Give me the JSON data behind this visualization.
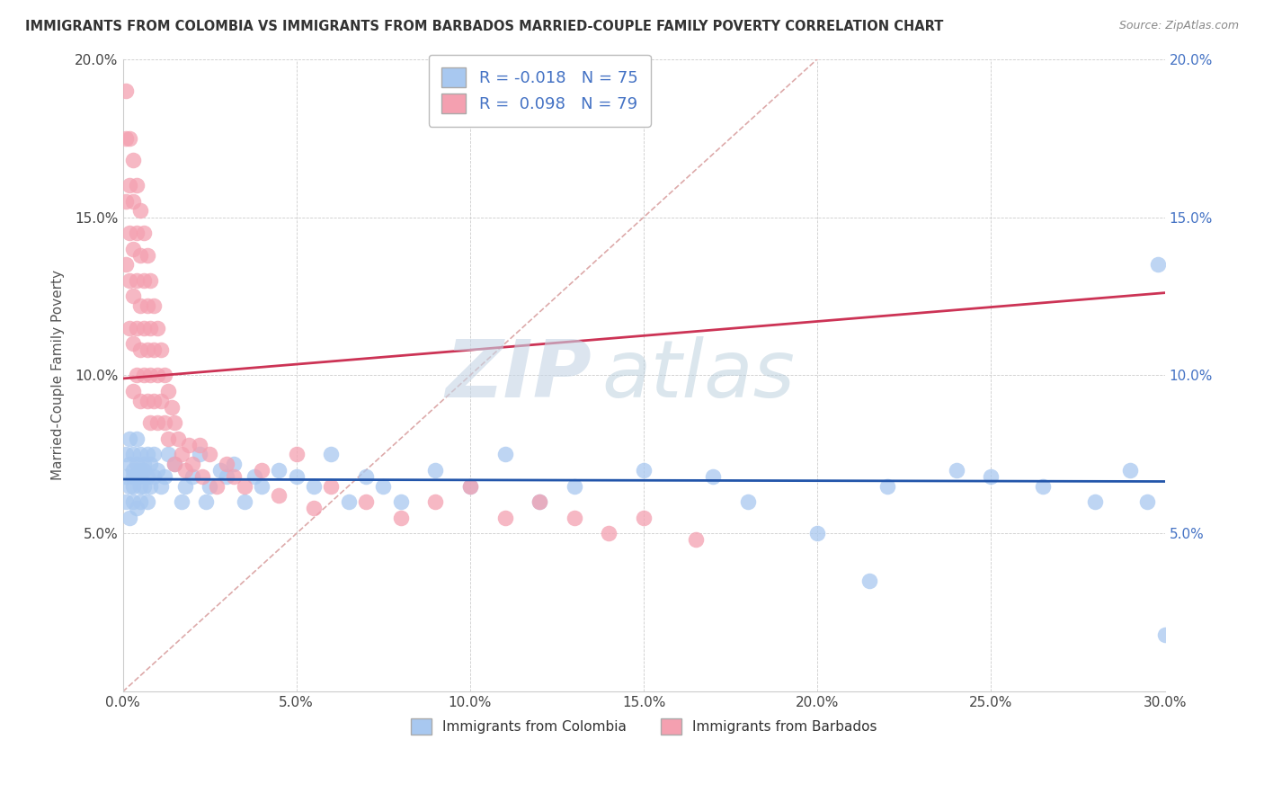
{
  "title": "IMMIGRANTS FROM COLOMBIA VS IMMIGRANTS FROM BARBADOS MARRIED-COUPLE FAMILY POVERTY CORRELATION CHART",
  "source": "Source: ZipAtlas.com",
  "xlabel_colombia": "Immigrants from Colombia",
  "xlabel_barbados": "Immigrants from Barbados",
  "ylabel": "Married-Couple Family Poverty",
  "xlim": [
    0.0,
    0.3
  ],
  "ylim": [
    0.0,
    0.2
  ],
  "xticks": [
    0.0,
    0.05,
    0.1,
    0.15,
    0.2,
    0.25,
    0.3
  ],
  "yticks": [
    0.0,
    0.05,
    0.1,
    0.15,
    0.2
  ],
  "colombia_color": "#a8c8f0",
  "barbados_color": "#f4a0b0",
  "colombia_line_color": "#2255aa",
  "barbados_line_color": "#cc3355",
  "ref_line_color": "#ddaaaa",
  "colombia_R": -0.018,
  "colombia_N": 75,
  "barbados_R": 0.098,
  "barbados_N": 79,
  "legend_text_color": "#4472c4",
  "watermark_zip": "ZIP",
  "watermark_atlas": "atlas",
  "watermark_color_zip": "#c8d4e0",
  "watermark_color_atlas": "#b8ccd8",
  "colombia_scatter_x": [
    0.001,
    0.001,
    0.001,
    0.002,
    0.002,
    0.002,
    0.002,
    0.003,
    0.003,
    0.003,
    0.003,
    0.003,
    0.004,
    0.004,
    0.004,
    0.004,
    0.005,
    0.005,
    0.005,
    0.005,
    0.005,
    0.006,
    0.006,
    0.006,
    0.007,
    0.007,
    0.007,
    0.008,
    0.008,
    0.009,
    0.009,
    0.01,
    0.011,
    0.012,
    0.013,
    0.015,
    0.017,
    0.018,
    0.02,
    0.022,
    0.024,
    0.025,
    0.028,
    0.03,
    0.032,
    0.035,
    0.038,
    0.04,
    0.045,
    0.05,
    0.055,
    0.06,
    0.065,
    0.07,
    0.075,
    0.08,
    0.09,
    0.1,
    0.11,
    0.12,
    0.13,
    0.15,
    0.17,
    0.2,
    0.22,
    0.24,
    0.25,
    0.265,
    0.28,
    0.29,
    0.295,
    0.298,
    0.3,
    0.215,
    0.18
  ],
  "colombia_scatter_y": [
    0.075,
    0.06,
    0.068,
    0.072,
    0.065,
    0.08,
    0.055,
    0.07,
    0.068,
    0.075,
    0.06,
    0.065,
    0.072,
    0.068,
    0.08,
    0.058,
    0.065,
    0.07,
    0.075,
    0.06,
    0.068,
    0.072,
    0.065,
    0.07,
    0.075,
    0.068,
    0.06,
    0.065,
    0.072,
    0.068,
    0.075,
    0.07,
    0.065,
    0.068,
    0.075,
    0.072,
    0.06,
    0.065,
    0.068,
    0.075,
    0.06,
    0.065,
    0.07,
    0.068,
    0.072,
    0.06,
    0.068,
    0.065,
    0.07,
    0.068,
    0.065,
    0.075,
    0.06,
    0.068,
    0.065,
    0.06,
    0.07,
    0.065,
    0.075,
    0.06,
    0.065,
    0.07,
    0.068,
    0.05,
    0.065,
    0.07,
    0.068,
    0.065,
    0.06,
    0.07,
    0.06,
    0.135,
    0.018,
    0.035,
    0.06
  ],
  "barbados_scatter_x": [
    0.001,
    0.001,
    0.001,
    0.001,
    0.002,
    0.002,
    0.002,
    0.002,
    0.002,
    0.003,
    0.003,
    0.003,
    0.003,
    0.003,
    0.003,
    0.004,
    0.004,
    0.004,
    0.004,
    0.004,
    0.005,
    0.005,
    0.005,
    0.005,
    0.005,
    0.006,
    0.006,
    0.006,
    0.006,
    0.007,
    0.007,
    0.007,
    0.007,
    0.008,
    0.008,
    0.008,
    0.008,
    0.009,
    0.009,
    0.009,
    0.01,
    0.01,
    0.01,
    0.011,
    0.011,
    0.012,
    0.012,
    0.013,
    0.013,
    0.014,
    0.015,
    0.015,
    0.016,
    0.017,
    0.018,
    0.019,
    0.02,
    0.022,
    0.023,
    0.025,
    0.027,
    0.03,
    0.032,
    0.035,
    0.04,
    0.045,
    0.05,
    0.055,
    0.06,
    0.07,
    0.08,
    0.09,
    0.1,
    0.11,
    0.12,
    0.13,
    0.14,
    0.15,
    0.165
  ],
  "barbados_scatter_y": [
    0.19,
    0.175,
    0.155,
    0.135,
    0.175,
    0.16,
    0.145,
    0.13,
    0.115,
    0.168,
    0.155,
    0.14,
    0.125,
    0.11,
    0.095,
    0.16,
    0.145,
    0.13,
    0.115,
    0.1,
    0.152,
    0.138,
    0.122,
    0.108,
    0.092,
    0.145,
    0.13,
    0.115,
    0.1,
    0.138,
    0.122,
    0.108,
    0.092,
    0.13,
    0.115,
    0.1,
    0.085,
    0.122,
    0.108,
    0.092,
    0.115,
    0.1,
    0.085,
    0.108,
    0.092,
    0.1,
    0.085,
    0.095,
    0.08,
    0.09,
    0.085,
    0.072,
    0.08,
    0.075,
    0.07,
    0.078,
    0.072,
    0.078,
    0.068,
    0.075,
    0.065,
    0.072,
    0.068,
    0.065,
    0.07,
    0.062,
    0.075,
    0.058,
    0.065,
    0.06,
    0.055,
    0.06,
    0.065,
    0.055,
    0.06,
    0.055,
    0.05,
    0.055,
    0.048
  ]
}
